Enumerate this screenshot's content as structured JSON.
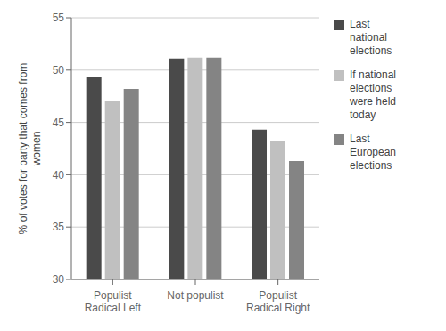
{
  "chart_data": {
    "type": "bar",
    "categories": [
      "Populist\nRadical Left",
      "Not populist",
      "Populist\nRadical Right"
    ],
    "series": [
      {
        "name": "Last\nnational\nelections",
        "color": "#4a4a4a",
        "values": [
          49.3,
          51.1,
          44.3
        ]
      },
      {
        "name": "If national\nelections\nwere held\ntoday",
        "color": "#c0c0c0",
        "values": [
          47.0,
          51.2,
          43.2
        ]
      },
      {
        "name": "Last\nEuropean\nelections",
        "color": "#848484",
        "values": [
          48.2,
          51.2,
          41.3
        ]
      }
    ],
    "ylabel": "% of votes for party that comes from\nwomen",
    "ylim": [
      30,
      55
    ],
    "yticks": [
      30,
      35,
      40,
      45,
      50,
      55
    ],
    "grid": true,
    "legend": "right"
  }
}
